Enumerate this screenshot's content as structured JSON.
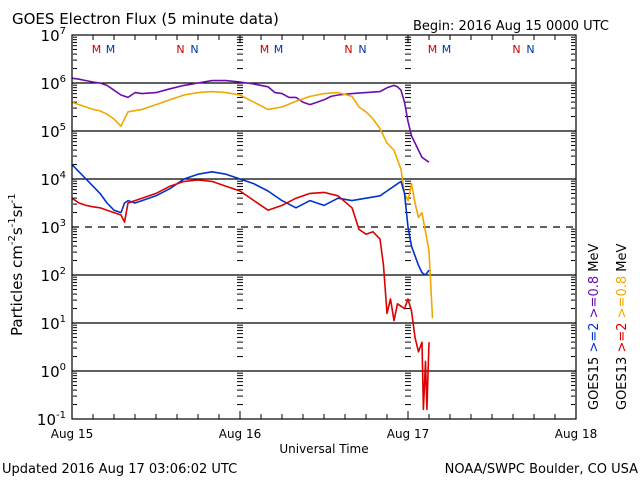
{
  "chart_data": {
    "type": "line",
    "title": "GOES Electron Flux (5 minute data)",
    "begin_label": "Begin: 2016 Aug 15 0000 UTC",
    "xlabel": "Universal Time",
    "ylabel_main": "Particles cm",
    "ylabel_parts": [
      "Particles cm",
      "-2",
      "s",
      "-1",
      "sr",
      "-1"
    ],
    "x_unit": "hours since 2016 Aug 15 0000 UTC",
    "xlim": [
      0,
      72
    ],
    "x_ticks": [
      {
        "hour": 0,
        "label": "Aug 15"
      },
      {
        "hour": 24,
        "label": "Aug 16"
      },
      {
        "hour": 48,
        "label": "Aug 17"
      },
      {
        "hour": 72,
        "label": "Aug 18"
      }
    ],
    "yscale": "log",
    "ylim_exp": [
      -1,
      7
    ],
    "y_ticks": [
      {
        "base": "10",
        "exp": "7"
      },
      {
        "base": "10",
        "exp": "6"
      },
      {
        "base": "10",
        "exp": "5"
      },
      {
        "base": "10",
        "exp": "4"
      },
      {
        "base": "10",
        "exp": "3"
      },
      {
        "base": "10",
        "exp": "2"
      },
      {
        "base": "10",
        "exp": "1"
      },
      {
        "base": "10",
        "exp": "0"
      },
      {
        "base": "10",
        "exp": "-1"
      }
    ],
    "gridlines_exp": [
      6,
      5,
      4,
      2,
      1,
      0
    ],
    "dashed_threshold_exp": 3,
    "mn_markers": [
      {
        "label": "M",
        "hour": 3.5,
        "color": "#cc0000"
      },
      {
        "label": "M",
        "hour": 5.5,
        "color": "#0033aa"
      },
      {
        "label": "N",
        "hour": 15.5,
        "color": "#cc0000"
      },
      {
        "label": "N",
        "hour": 17.5,
        "color": "#0033aa"
      },
      {
        "label": "M",
        "hour": 27.5,
        "color": "#cc0000"
      },
      {
        "label": "M",
        "hour": 29.5,
        "color": "#0033aa"
      },
      {
        "label": "N",
        "hour": 39.5,
        "color": "#cc0000"
      },
      {
        "label": "N",
        "hour": 41.5,
        "color": "#0033aa"
      },
      {
        "label": "M",
        "hour": 51.5,
        "color": "#cc0000"
      },
      {
        "label": "M",
        "hour": 53.5,
        "color": "#0033aa"
      },
      {
        "label": "N",
        "hour": 63.5,
        "color": "#cc0000"
      },
      {
        "label": "N",
        "hour": 65.5,
        "color": "#0033aa"
      }
    ],
    "legend": {
      "placement": "right-vertical",
      "columns": [
        {
          "sat": "GOES15",
          "items": [
            {
              "text": ">=2",
              "color": "#0033cc"
            },
            {
              "text": ">=0.8",
              "color": "#6a0dad"
            }
          ],
          "unit": "MeV"
        },
        {
          "sat": "GOES13",
          "items": [
            {
              "text": ">=2",
              "color": "#dd0000"
            },
            {
              "text": ">=0.8",
              "color": "#f0a800"
            }
          ],
          "unit": "MeV"
        }
      ]
    },
    "series": [
      {
        "name": "GOES15 >=0.8 MeV",
        "color": "#6a0dad",
        "x": [
          0,
          1,
          2,
          3,
          4,
          5,
          6,
          7,
          8,
          9,
          10,
          12,
          14,
          16,
          18,
          20,
          22,
          24,
          26,
          28,
          29,
          30,
          31,
          32,
          33,
          34,
          35,
          36,
          37,
          38,
          40,
          42,
          44,
          45,
          46,
          46.5,
          47,
          47.5,
          48,
          48.5,
          49,
          49.5,
          50,
          50.5,
          51
        ],
        "y": [
          6.1,
          6.08,
          6.05,
          6.02,
          6.0,
          5.95,
          5.85,
          5.75,
          5.7,
          5.8,
          5.78,
          5.8,
          5.88,
          5.95,
          6.0,
          6.05,
          6.05,
          6.02,
          5.98,
          5.92,
          5.8,
          5.78,
          5.7,
          5.7,
          5.6,
          5.55,
          5.6,
          5.65,
          5.72,
          5.75,
          5.78,
          5.8,
          5.82,
          5.9,
          5.95,
          5.92,
          5.85,
          5.6,
          5.2,
          4.9,
          4.75,
          4.6,
          4.45,
          4.4,
          4.35
        ]
      },
      {
        "name": "GOES13 >=0.8 MeV",
        "color": "#f0a800",
        "x": [
          0,
          1,
          2,
          3,
          4,
          5,
          6,
          7,
          8,
          10,
          12,
          14,
          16,
          18,
          20,
          22,
          24,
          26,
          28,
          30,
          32,
          34,
          36,
          38,
          40,
          41,
          42,
          43,
          44,
          45,
          46,
          47,
          47.5,
          48,
          48.5,
          49,
          49.5,
          50,
          50.5,
          51,
          51.5
        ],
        "y": [
          5.6,
          5.55,
          5.5,
          5.45,
          5.42,
          5.35,
          5.25,
          5.1,
          5.4,
          5.45,
          5.55,
          5.65,
          5.75,
          5.8,
          5.82,
          5.8,
          5.75,
          5.6,
          5.45,
          5.5,
          5.62,
          5.72,
          5.78,
          5.8,
          5.72,
          5.5,
          5.4,
          5.25,
          5.05,
          4.75,
          4.6,
          4.2,
          3.7,
          3.55,
          3.9,
          3.5,
          3.2,
          3.3,
          2.9,
          2.5,
          1.1
        ]
      },
      {
        "name": "GOES15 >=2 MeV",
        "color": "#0033cc",
        "x": [
          0,
          1,
          2,
          3,
          4,
          5,
          6,
          7,
          7.5,
          8,
          9,
          10,
          12,
          14,
          16,
          18,
          20,
          22,
          24,
          26,
          28,
          30,
          32,
          34,
          36,
          38,
          40,
          42,
          44,
          45,
          46,
          47,
          47.5,
          48,
          48.5,
          49,
          49.5,
          50,
          50.5,
          51
        ],
        "y": [
          4.3,
          4.15,
          4.0,
          3.85,
          3.7,
          3.5,
          3.35,
          3.3,
          3.5,
          3.55,
          3.5,
          3.55,
          3.65,
          3.8,
          4.0,
          4.1,
          4.15,
          4.1,
          4.0,
          3.9,
          3.75,
          3.55,
          3.4,
          3.55,
          3.45,
          3.6,
          3.55,
          3.6,
          3.65,
          3.75,
          3.85,
          3.95,
          3.7,
          3.0,
          2.6,
          2.4,
          2.2,
          2.05,
          2.0,
          2.1
        ]
      },
      {
        "name": "GOES13 >=2 MeV",
        "color": "#dd0000",
        "x": [
          0,
          1,
          2,
          3,
          4,
          5,
          6,
          7,
          7.5,
          8,
          9,
          10,
          12,
          14,
          16,
          18,
          20,
          22,
          24,
          26,
          28,
          30,
          32,
          34,
          36,
          38,
          40,
          41,
          42,
          43,
          44,
          44.5,
          45,
          45.5,
          46,
          46.5,
          47,
          47.5,
          48,
          48.5,
          49,
          49.5,
          50,
          50.2,
          50.5,
          50.7,
          51
        ],
        "y": [
          3.6,
          3.5,
          3.45,
          3.42,
          3.4,
          3.35,
          3.3,
          3.25,
          3.1,
          3.5,
          3.55,
          3.6,
          3.7,
          3.85,
          3.95,
          3.98,
          3.95,
          3.85,
          3.75,
          3.55,
          3.35,
          3.45,
          3.6,
          3.7,
          3.72,
          3.65,
          3.4,
          2.95,
          2.85,
          2.9,
          2.75,
          2.2,
          1.2,
          1.5,
          1.05,
          1.4,
          1.35,
          1.3,
          1.5,
          1.25,
          0.7,
          0.4,
          0.6,
          -0.8,
          0.2,
          -0.8,
          0.6
        ]
      }
    ],
    "footer_left": "Updated 2016 Aug 17 03:06:02 UTC",
    "footer_right": "NOAA/SWPC Boulder, CO USA"
  }
}
